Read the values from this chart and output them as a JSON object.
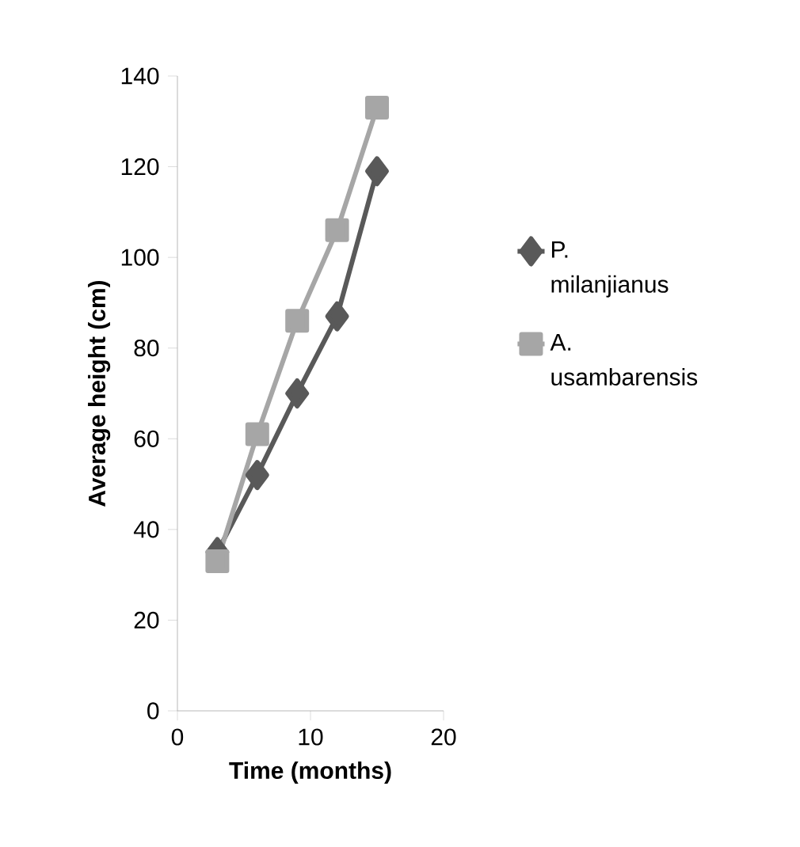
{
  "chart_data": {
    "type": "line",
    "xlabel": "Time (months)",
    "ylabel": "Average height (cm)",
    "xlim": [
      0,
      20
    ],
    "xticks": [
      0,
      10,
      20
    ],
    "ylim": [
      0,
      140
    ],
    "yticks": [
      0,
      20,
      40,
      60,
      80,
      100,
      120,
      140
    ],
    "grid": false,
    "legend": "right",
    "line_style": "solid",
    "series": [
      {
        "name": "P. milanjianus",
        "color": "#595959",
        "marker": "diamond",
        "x": [
          3,
          6,
          9,
          12,
          15
        ],
        "values": [
          35,
          52,
          70,
          87,
          119
        ]
      },
      {
        "name": "A. usambarensis",
        "color": "#a6a6a6",
        "marker": "square",
        "x": [
          3,
          6,
          9,
          12,
          15
        ],
        "values": [
          33,
          61,
          86,
          106,
          133
        ]
      }
    ]
  }
}
